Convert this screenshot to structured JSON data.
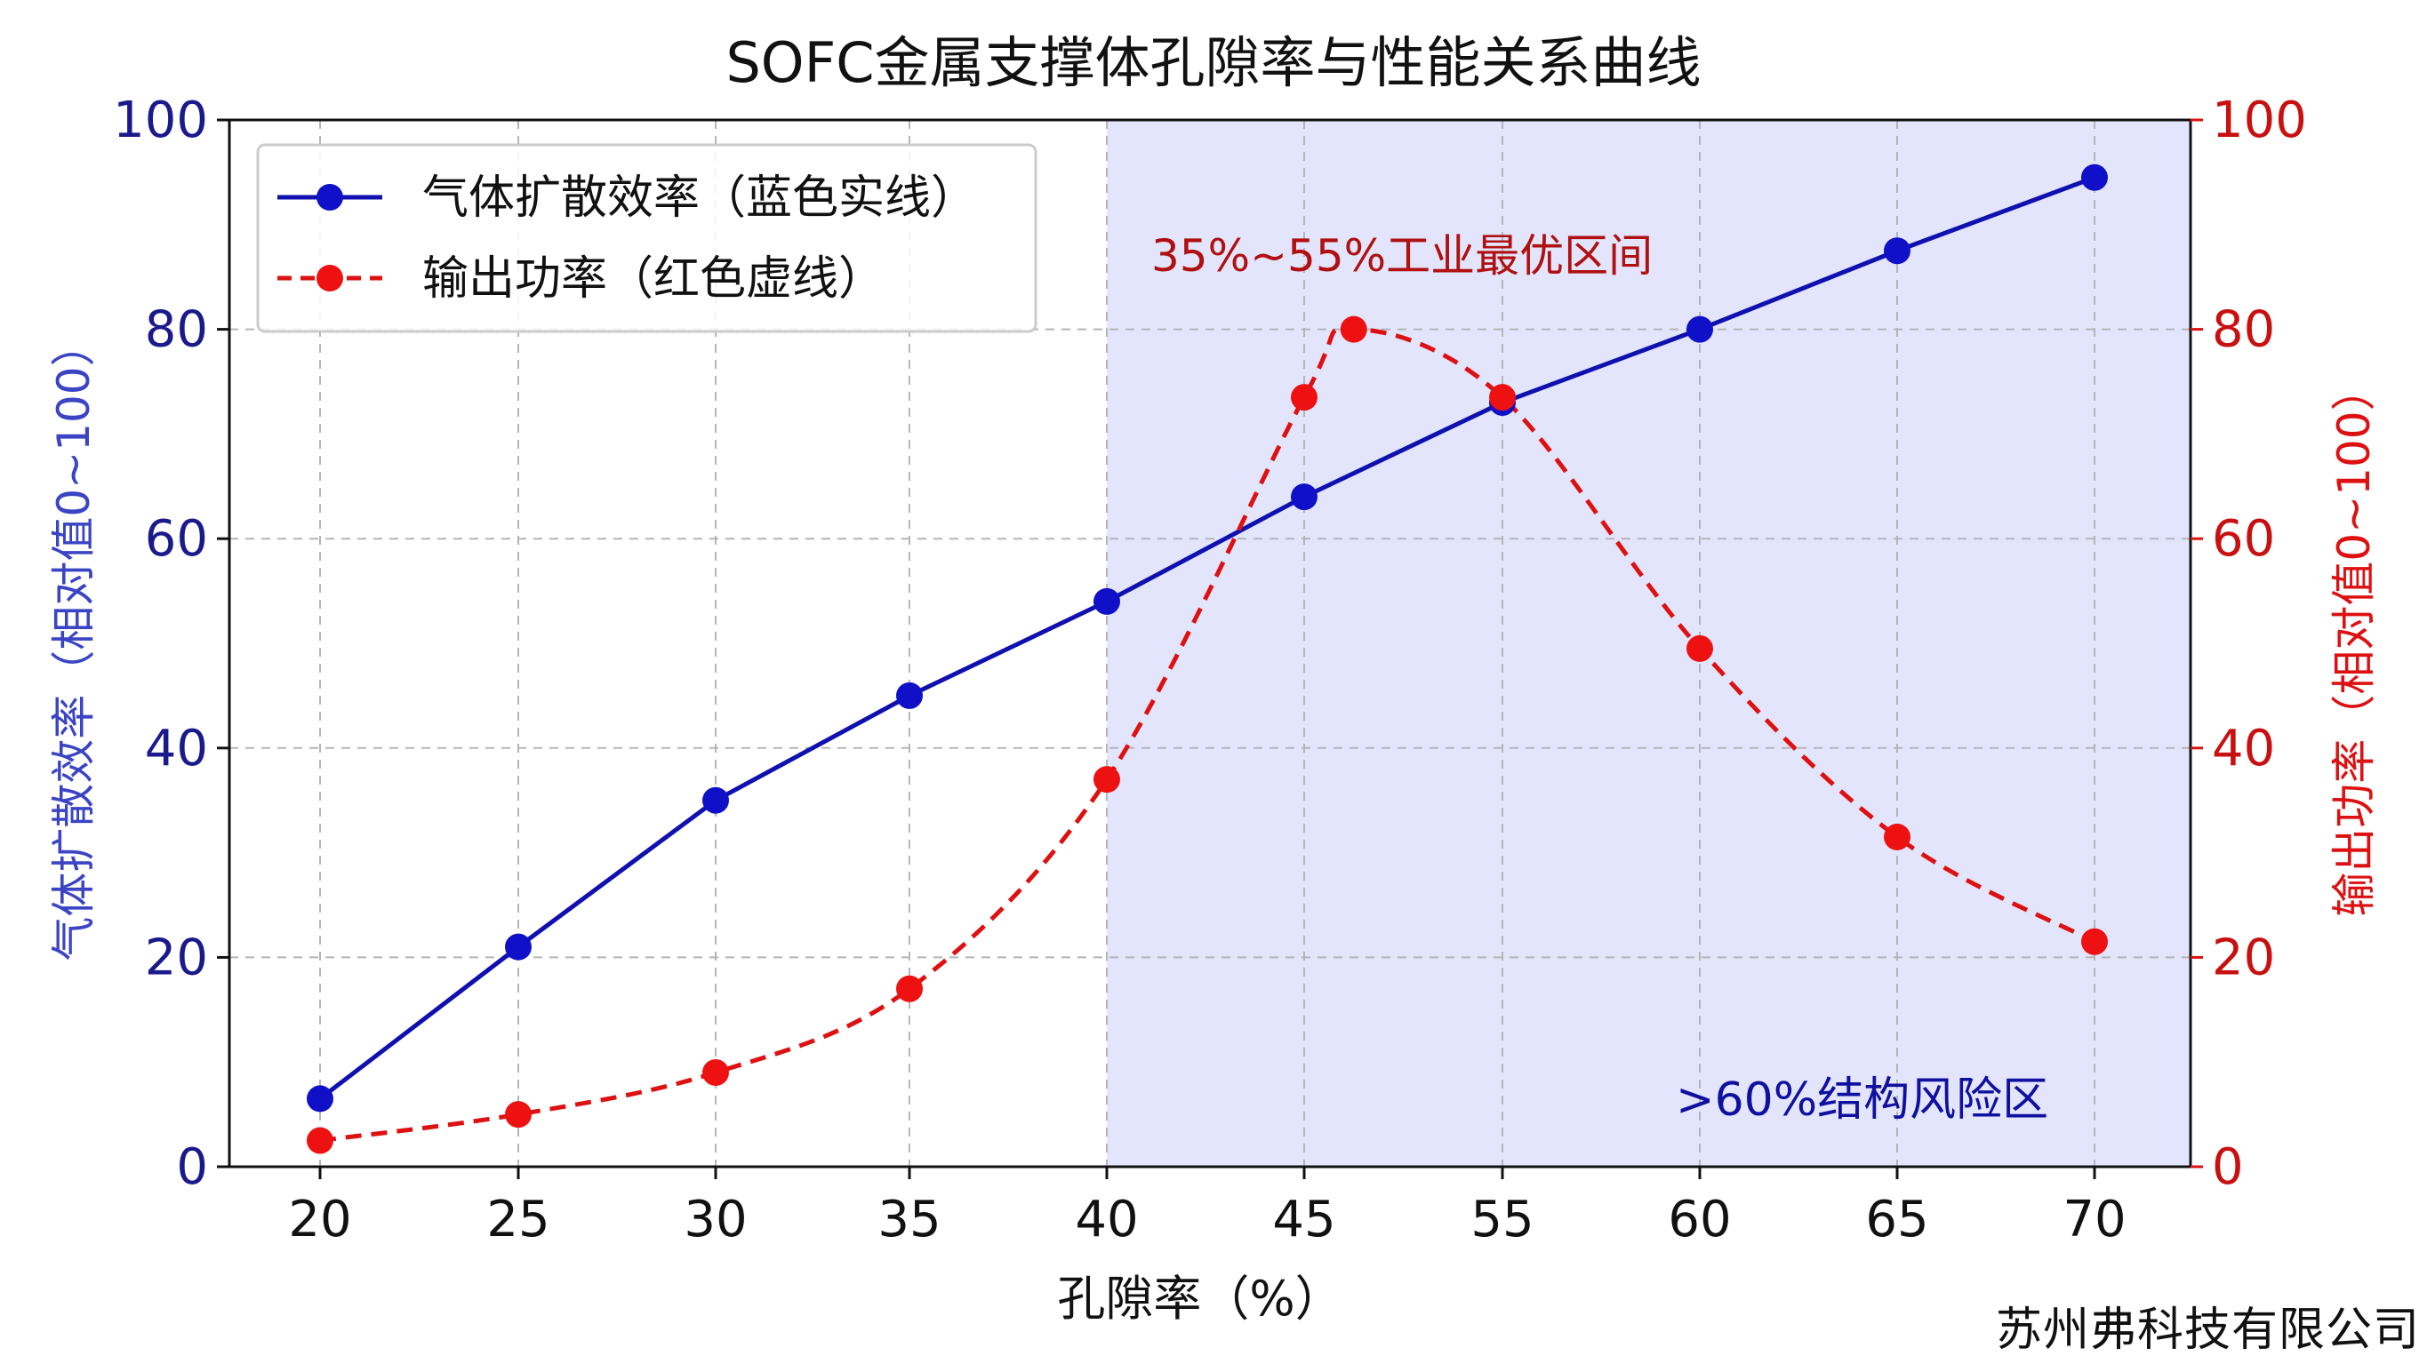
{
  "chart_data": {
    "type": "line",
    "title": "SOFC金属支撑体孔隙率与性能关系曲线",
    "xlabel": "孔隙率（%）",
    "ylabel_left": "气体扩散效率（相对值0~100）",
    "ylabel_right": "输出功率（相对值0~100）",
    "x_tick_labels": [
      "20",
      "25",
      "30",
      "35",
      "40",
      "45",
      "55",
      "60",
      "65",
      "70"
    ],
    "y_ticks": [
      0,
      20,
      40,
      60,
      80,
      100
    ],
    "ylim": [
      0,
      100
    ],
    "grid": true,
    "legend_position": "top-left",
    "series": [
      {
        "name": "气体扩散效率（蓝色实线）",
        "color": "#1010b0",
        "style": "solid",
        "x": [
          20,
          25,
          30,
          35,
          40,
          45,
          55,
          60,
          65,
          70
        ],
        "values": [
          6.5,
          21,
          35,
          45,
          54,
          64,
          73,
          80,
          87.5,
          94.5
        ]
      },
      {
        "name": "输出功率（红色虚线）",
        "color": "#dd1111",
        "style": "dashed",
        "x": [
          20,
          25,
          30,
          35,
          40,
          45,
          47.5,
          55,
          60,
          65,
          70
        ],
        "values": [
          2.5,
          5,
          9,
          17,
          37,
          73.5,
          80,
          73.5,
          49.5,
          31.5,
          21.5
        ]
      }
    ],
    "annotations": [
      {
        "text": "35%~55%工业最优区间",
        "color": "#b01010"
      },
      {
        "text": ">60%结构风险区",
        "color": "#1010a0"
      }
    ],
    "shaded_region_color": "#dde0fb"
  },
  "watermark": "苏州弗科技有限公司"
}
